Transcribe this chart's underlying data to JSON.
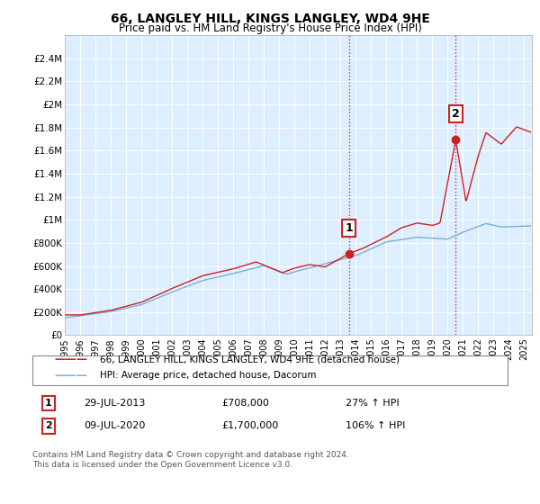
{
  "title": "66, LANGLEY HILL, KINGS LANGLEY, WD4 9HE",
  "subtitle": "Price paid vs. HM Land Registry's House Price Index (HPI)",
  "background_color": "#ffffff",
  "plot_bg_color": "#ddeeff",
  "hpi_color": "#7ab0d4",
  "price_color": "#cc2222",
  "ylim": [
    0,
    2600000
  ],
  "yticks": [
    0,
    200000,
    400000,
    600000,
    800000,
    1000000,
    1200000,
    1400000,
    1600000,
    1800000,
    2000000,
    2200000,
    2400000
  ],
  "ytick_labels": [
    "£0",
    "£200K",
    "£400K",
    "£600K",
    "£800K",
    "£1M",
    "£1.2M",
    "£1.4M",
    "£1.6M",
    "£1.8M",
    "£2M",
    "£2.2M",
    "£2.4M"
  ],
  "sale1_year": 2013.57,
  "sale1_price": 708000,
  "sale1_label": "1",
  "sale1_date": "29-JUL-2013",
  "sale1_hpi_pct": "27%",
  "sale2_year": 2020.52,
  "sale2_price": 1700000,
  "sale2_label": "2",
  "sale2_date": "09-JUL-2020",
  "sale2_hpi_pct": "106%",
  "vline_color": "#cc2222",
  "legend_price_label": "66, LANGLEY HILL, KINGS LANGLEY, WD4 9HE (detached house)",
  "legend_hpi_label": "HPI: Average price, detached house, Dacorum",
  "footnote": "Contains HM Land Registry data © Crown copyright and database right 2024.\nThis data is licensed under the Open Government Licence v3.0.",
  "xlim_start": 1995.0,
  "xlim_end": 2025.5
}
